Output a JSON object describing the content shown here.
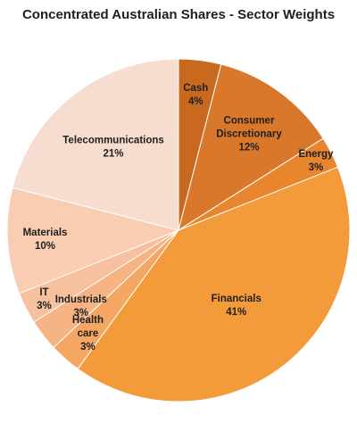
{
  "chart_data": {
    "type": "pie",
    "title": "Concentrated Australian Shares - Sector Weights",
    "slices": [
      {
        "name": "Cash",
        "value": 4,
        "label_lines": [
          "Cash",
          "4%"
        ],
        "color": "#c8691f"
      },
      {
        "name": "Consumer Discretionary",
        "value": 12,
        "label_lines": [
          "Consumer",
          "Discretionary",
          "12%"
        ],
        "color": "#d9782a"
      },
      {
        "name": "Energy",
        "value": 3,
        "label_lines": [
          "Energy",
          "3%"
        ],
        "color": "#e8862e"
      },
      {
        "name": "Financials",
        "value": 41,
        "label_lines": [
          "Financials",
          "41%"
        ],
        "color": "#f39a3b"
      },
      {
        "name": "Health care",
        "value": 3,
        "label_lines": [
          "Health",
          "care",
          "3%"
        ],
        "color": "#f4a662"
      },
      {
        "name": "Industrials",
        "value": 3,
        "label_lines": [
          "Industrials",
          "3%"
        ],
        "color": "#f6b484"
      },
      {
        "name": "IT",
        "value": 3,
        "label_lines": [
          "IT",
          "3%"
        ],
        "color": "#f7c19f"
      },
      {
        "name": "Materials",
        "value": 10,
        "label_lines": [
          "Materials",
          "10%"
        ],
        "color": "#f9cdb2"
      },
      {
        "name": "Telecommunications",
        "value": 21,
        "label_lines": [
          "Telecommunications",
          "21%"
        ],
        "color": "#f7ddd0"
      }
    ]
  }
}
